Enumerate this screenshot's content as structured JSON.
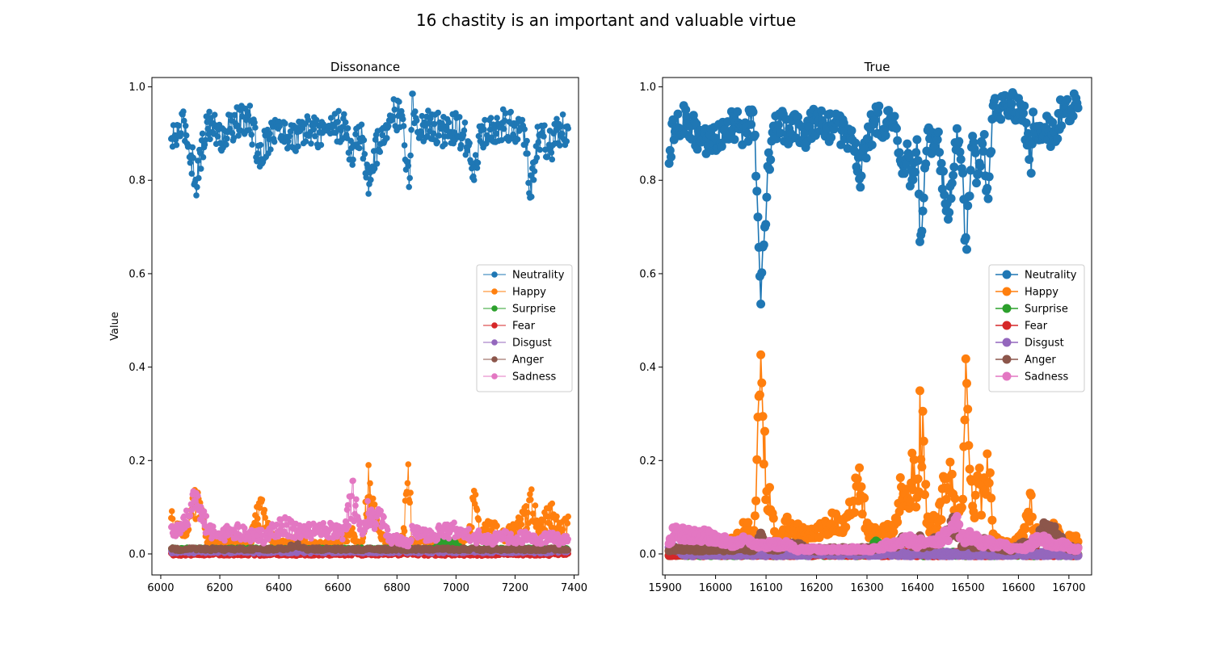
{
  "figure": {
    "title": "16 chastity is an important and valuable virtue"
  },
  "chart_data": [
    {
      "type": "line",
      "title": "Dissonance",
      "xlabel": "",
      "ylabel": "Value",
      "xlim": [
        5970,
        7415
      ],
      "ylim": [
        -0.045,
        1.02
      ],
      "x_ticks": [
        6000,
        6200,
        6400,
        6600,
        6800,
        7000,
        7200,
        7400
      ],
      "y_ticks": [
        0.0,
        0.2,
        0.4,
        0.6,
        0.8,
        1.0
      ],
      "x_range": [
        6035,
        7380
      ],
      "grid": false,
      "legend": "center-right",
      "marker_size": "small",
      "x": [
        6035,
        6080,
        6100,
        6120,
        6160,
        6200,
        6250,
        6300,
        6340,
        6345,
        6380,
        6420,
        6460,
        6500,
        6540,
        6580,
        6620,
        6650,
        6655,
        6680,
        6705,
        6710,
        6740,
        6780,
        6820,
        6840,
        6845,
        6850,
        6880,
        6920,
        6960,
        7000,
        7020,
        7050,
        7060,
        7080,
        7120,
        7160,
        7200,
        7240,
        7250,
        7280,
        7320,
        7350,
        7380
      ],
      "series": [
        {
          "name": "Neutrality",
          "color": "#1f77b4",
          "values": [
            0.88,
            0.92,
            0.86,
            0.8,
            0.93,
            0.89,
            0.92,
            0.93,
            0.84,
            0.87,
            0.91,
            0.9,
            0.89,
            0.91,
            0.9,
            0.92,
            0.91,
            0.85,
            0.88,
            0.9,
            0.78,
            0.83,
            0.88,
            0.95,
            0.93,
            0.79,
            0.83,
            0.96,
            0.91,
            0.92,
            0.9,
            0.91,
            0.9,
            0.87,
            0.79,
            0.89,
            0.9,
            0.92,
            0.91,
            0.89,
            0.77,
            0.9,
            0.87,
            0.91,
            0.9
          ]
        },
        {
          "name": "Happy",
          "color": "#ff7f0e",
          "values": [
            0.07,
            0.05,
            0.08,
            0.11,
            0.03,
            0.02,
            0.03,
            0.02,
            0.11,
            0.08,
            0.03,
            0.02,
            0.03,
            0.02,
            0.02,
            0.02,
            0.03,
            0.05,
            0.03,
            0.02,
            0.15,
            0.12,
            0.04,
            0.02,
            0.03,
            0.17,
            0.13,
            0.02,
            0.03,
            0.02,
            0.03,
            0.02,
            0.03,
            0.05,
            0.13,
            0.04,
            0.06,
            0.04,
            0.05,
            0.08,
            0.12,
            0.06,
            0.09,
            0.05,
            0.06
          ]
        },
        {
          "name": "Surprise",
          "color": "#2ca02c",
          "values": [
            0.01,
            0.01,
            0.01,
            0.01,
            0.01,
            0.01,
            0.01,
            0.01,
            0.01,
            0.01,
            0.01,
            0.01,
            0.01,
            0.01,
            0.01,
            0.01,
            0.01,
            0.01,
            0.01,
            0.01,
            0.01,
            0.01,
            0.01,
            0.01,
            0.01,
            0.01,
            0.01,
            0.01,
            0.01,
            0.01,
            0.03,
            0.02,
            0.01,
            0.01,
            0.01,
            0.01,
            0.01,
            0.01,
            0.01,
            0.01,
            0.01,
            0.01,
            0.01,
            0.01,
            0.01
          ]
        },
        {
          "name": "Fear",
          "color": "#d62728",
          "values": [
            0.0,
            0.0,
            0.0,
            0.0,
            0.0,
            0.0,
            0.0,
            0.0,
            0.0,
            0.0,
            0.0,
            0.0,
            0.0,
            0.0,
            0.0,
            0.0,
            0.0,
            0.0,
            0.0,
            0.0,
            0.0,
            0.0,
            0.0,
            0.0,
            0.0,
            0.0,
            0.0,
            0.0,
            0.0,
            0.0,
            0.0,
            0.0,
            0.0,
            0.0,
            0.0,
            0.0,
            0.0,
            0.0,
            0.0,
            0.0,
            0.0,
            0.0,
            0.0,
            0.0,
            0.0
          ]
        },
        {
          "name": "Disgust",
          "color": "#9467bd",
          "values": [
            0.005,
            0.005,
            0.005,
            0.005,
            0.005,
            0.005,
            0.005,
            0.005,
            0.005,
            0.005,
            0.005,
            0.005,
            0.005,
            0.005,
            0.005,
            0.005,
            0.005,
            0.005,
            0.005,
            0.005,
            0.005,
            0.005,
            0.005,
            0.005,
            0.005,
            0.005,
            0.005,
            0.005,
            0.005,
            0.005,
            0.005,
            0.005,
            0.005,
            0.005,
            0.005,
            0.005,
            0.005,
            0.005,
            0.005,
            0.005,
            0.005,
            0.005,
            0.005,
            0.005,
            0.005
          ]
        },
        {
          "name": "Anger",
          "color": "#8c564b",
          "values": [
            0.01,
            0.01,
            0.01,
            0.01,
            0.01,
            0.01,
            0.01,
            0.01,
            0.01,
            0.01,
            0.01,
            0.01,
            0.02,
            0.01,
            0.01,
            0.01,
            0.01,
            0.01,
            0.01,
            0.01,
            0.01,
            0.01,
            0.01,
            0.01,
            0.01,
            0.01,
            0.01,
            0.01,
            0.01,
            0.01,
            0.01,
            0.01,
            0.01,
            0.01,
            0.01,
            0.01,
            0.01,
            0.01,
            0.01,
            0.01,
            0.01,
            0.01,
            0.01,
            0.01,
            0.01
          ]
        },
        {
          "name": "Sadness",
          "color": "#e377c2",
          "values": [
            0.05,
            0.06,
            0.1,
            0.12,
            0.05,
            0.04,
            0.05,
            0.04,
            0.04,
            0.03,
            0.05,
            0.06,
            0.05,
            0.05,
            0.05,
            0.05,
            0.04,
            0.13,
            0.1,
            0.06,
            0.09,
            0.07,
            0.08,
            0.03,
            0.03,
            0.02,
            0.03,
            0.05,
            0.04,
            0.04,
            0.05,
            0.05,
            0.04,
            0.04,
            0.03,
            0.04,
            0.03,
            0.04,
            0.03,
            0.04,
            0.03,
            0.03,
            0.04,
            0.03,
            0.03
          ]
        }
      ]
    },
    {
      "type": "line",
      "title": "True",
      "xlabel": "",
      "ylabel": "",
      "xlim": [
        15895,
        16745
      ],
      "ylim": [
        -0.045,
        1.02
      ],
      "x_ticks": [
        15900,
        16000,
        16100,
        16200,
        16300,
        16400,
        16500,
        16600,
        16700
      ],
      "y_ticks": [
        0.0,
        0.2,
        0.4,
        0.6,
        0.8,
        1.0
      ],
      "x_range": [
        15908,
        16718
      ],
      "grid": false,
      "legend": "center-right",
      "marker_size": "large",
      "x": [
        15908,
        15920,
        15940,
        15960,
        15980,
        16000,
        16020,
        16040,
        16060,
        16075,
        16085,
        16090,
        16093,
        16096,
        16100,
        16105,
        16120,
        16140,
        16160,
        16180,
        16200,
        16220,
        16240,
        16260,
        16280,
        16285,
        16300,
        16320,
        16340,
        16360,
        16370,
        16380,
        16390,
        16400,
        16405,
        16410,
        16420,
        16440,
        16460,
        16470,
        16480,
        16490,
        16495,
        16500,
        16510,
        16520,
        16530,
        16540,
        16550,
        16570,
        16590,
        16610,
        16625,
        16630,
        16650,
        16670,
        16690,
        16710,
        16718
      ],
      "series": [
        {
          "name": "Neutrality",
          "color": "#1f77b4",
          "values": [
            0.87,
            0.91,
            0.93,
            0.9,
            0.88,
            0.89,
            0.91,
            0.92,
            0.9,
            0.95,
            0.71,
            0.55,
            0.63,
            0.67,
            0.75,
            0.83,
            0.92,
            0.91,
            0.92,
            0.9,
            0.93,
            0.92,
            0.91,
            0.9,
            0.85,
            0.8,
            0.89,
            0.93,
            0.92,
            0.9,
            0.8,
            0.85,
            0.78,
            0.86,
            0.67,
            0.72,
            0.9,
            0.88,
            0.74,
            0.82,
            0.89,
            0.85,
            0.64,
            0.72,
            0.88,
            0.8,
            0.9,
            0.75,
            0.95,
            0.97,
            0.96,
            0.94,
            0.84,
            0.93,
            0.91,
            0.89,
            0.97,
            0.95,
            0.96
          ]
        },
        {
          "name": "Happy",
          "color": "#ff7f0e",
          "values": [
            0.01,
            0.01,
            0.01,
            0.01,
            0.01,
            0.02,
            0.02,
            0.03,
            0.06,
            0.03,
            0.25,
            0.39,
            0.29,
            0.24,
            0.16,
            0.13,
            0.02,
            0.06,
            0.05,
            0.04,
            0.05,
            0.06,
            0.07,
            0.06,
            0.14,
            0.16,
            0.05,
            0.04,
            0.05,
            0.06,
            0.16,
            0.12,
            0.18,
            0.1,
            0.28,
            0.26,
            0.06,
            0.07,
            0.18,
            0.12,
            0.06,
            0.14,
            0.33,
            0.24,
            0.08,
            0.16,
            0.1,
            0.2,
            0.03,
            0.02,
            0.02,
            0.04,
            0.11,
            0.05,
            0.04,
            0.05,
            0.03,
            0.03,
            0.03
          ]
        },
        {
          "name": "Surprise",
          "color": "#2ca02c",
          "values": [
            0.0,
            0.0,
            0.0,
            0.0,
            0.0,
            0.0,
            0.0,
            0.0,
            0.0,
            0.0,
            0.0,
            0.0,
            0.0,
            0.0,
            0.0,
            0.0,
            0.0,
            0.0,
            0.0,
            0.0,
            0.0,
            0.0,
            0.0,
            0.0,
            0.0,
            0.0,
            0.0,
            0.03,
            0.0,
            0.0,
            0.0,
            0.0,
            0.0,
            0.0,
            0.0,
            0.0,
            0.0,
            0.0,
            0.0,
            0.0,
            0.0,
            0.0,
            0.0,
            0.0,
            0.0,
            0.0,
            0.0,
            0.0,
            0.0,
            0.0,
            0.0,
            0.0,
            0.0,
            0.0,
            0.0,
            0.0,
            0.0,
            0.0,
            0.0
          ]
        },
        {
          "name": "Fear",
          "color": "#d62728",
          "values": [
            0.0,
            0.0,
            0.0,
            0.0,
            0.0,
            0.0,
            0.0,
            0.0,
            0.0,
            0.0,
            0.0,
            0.0,
            0.0,
            0.0,
            0.0,
            0.0,
            0.0,
            0.0,
            0.0,
            0.0,
            0.0,
            0.0,
            0.0,
            0.0,
            0.0,
            0.0,
            0.0,
            0.0,
            0.0,
            0.0,
            0.0,
            0.0,
            0.0,
            0.0,
            0.0,
            0.0,
            0.0,
            0.0,
            0.0,
            0.0,
            0.0,
            0.0,
            0.0,
            0.0,
            0.0,
            0.0,
            0.0,
            0.0,
            0.0,
            0.0,
            0.0,
            0.0,
            0.0,
            0.0,
            0.0,
            0.0,
            0.0,
            0.0,
            0.0
          ]
        },
        {
          "name": "Disgust",
          "color": "#9467bd",
          "values": [
            0.02,
            0.01,
            0.0,
            0.0,
            0.0,
            0.0,
            0.0,
            0.0,
            0.0,
            0.0,
            0.0,
            0.0,
            0.0,
            0.0,
            0.0,
            0.0,
            0.0,
            0.0,
            0.0,
            0.0,
            0.0,
            0.0,
            0.0,
            0.0,
            0.0,
            0.0,
            0.0,
            0.0,
            0.0,
            0.0,
            0.0,
            0.0,
            0.0,
            0.0,
            0.0,
            0.0,
            0.0,
            0.0,
            0.0,
            0.0,
            0.0,
            0.0,
            0.0,
            0.0,
            0.0,
            0.0,
            0.0,
            0.0,
            0.0,
            0.0,
            0.0,
            0.0,
            0.0,
            0.0,
            0.0,
            0.0,
            0.0,
            0.0,
            0.0
          ]
        },
        {
          "name": "Anger",
          "color": "#8c564b",
          "values": [
            0.01,
            0.01,
            0.01,
            0.01,
            0.01,
            0.01,
            0.01,
            0.01,
            0.01,
            0.01,
            0.03,
            0.04,
            0.03,
            0.02,
            0.02,
            0.01,
            0.01,
            0.02,
            0.02,
            0.01,
            0.01,
            0.01,
            0.01,
            0.01,
            0.01,
            0.01,
            0.01,
            0.01,
            0.02,
            0.02,
            0.03,
            0.03,
            0.02,
            0.02,
            0.03,
            0.02,
            0.02,
            0.03,
            0.04,
            0.06,
            0.04,
            0.02,
            0.03,
            0.02,
            0.02,
            0.02,
            0.03,
            0.02,
            0.02,
            0.01,
            0.01,
            0.02,
            0.02,
            0.02,
            0.05,
            0.05,
            0.02,
            0.01,
            0.01
          ]
        },
        {
          "name": "Sadness",
          "color": "#e377c2",
          "values": [
            0.03,
            0.05,
            0.04,
            0.04,
            0.04,
            0.03,
            0.03,
            0.02,
            0.03,
            0.02,
            0.02,
            0.02,
            0.02,
            0.02,
            0.02,
            0.02,
            0.02,
            0.02,
            0.01,
            0.01,
            0.01,
            0.01,
            0.01,
            0.01,
            0.01,
            0.01,
            0.01,
            0.01,
            0.02,
            0.02,
            0.03,
            0.03,
            0.03,
            0.02,
            0.03,
            0.03,
            0.02,
            0.03,
            0.04,
            0.07,
            0.06,
            0.04,
            0.03,
            0.04,
            0.03,
            0.03,
            0.02,
            0.03,
            0.02,
            0.02,
            0.01,
            0.01,
            0.02,
            0.03,
            0.03,
            0.02,
            0.02,
            0.01,
            0.01
          ]
        }
      ]
    }
  ]
}
